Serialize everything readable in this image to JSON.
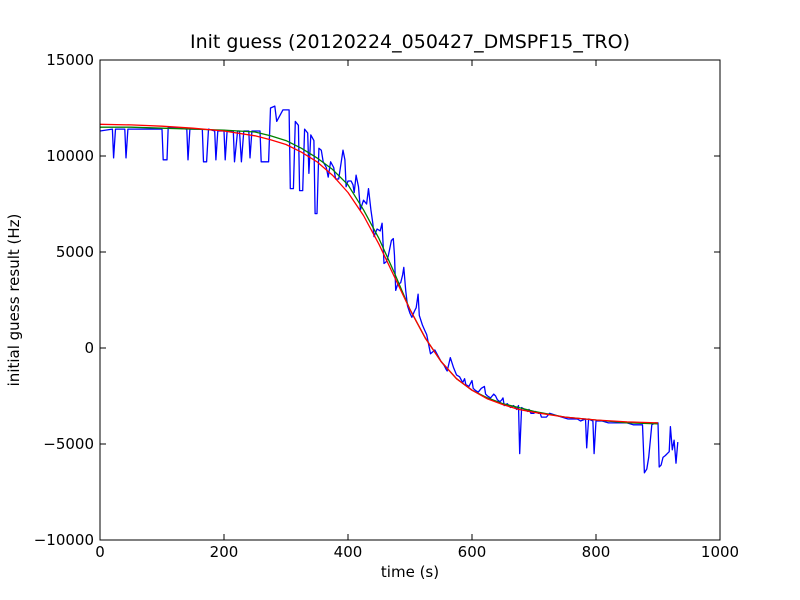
{
  "chart_data": {
    "type": "line",
    "title": "Init guess (20120224_050427_DMSPF15_TRO)",
    "xlabel": "time (s)",
    "ylabel": "initial guess result (Hz)",
    "xlim": [
      0,
      1000
    ],
    "ylim": [
      -10000,
      15000
    ],
    "x_ticks": [
      0,
      200,
      400,
      600,
      800,
      1000
    ],
    "y_ticks": [
      -10000,
      -5000,
      0,
      5000,
      10000,
      15000
    ],
    "x_tick_labels": [
      "0",
      "200",
      "400",
      "600",
      "800",
      "1000"
    ],
    "y_tick_labels": [
      "−10000",
      "−5000",
      "0",
      "5000",
      "10000",
      "15000"
    ],
    "grid": false,
    "series": [
      {
        "color": "#0000ff",
        "points": [
          [
            0,
            11300
          ],
          [
            20,
            11400
          ],
          [
            22,
            9900
          ],
          [
            25,
            11400
          ],
          [
            40,
            11400
          ],
          [
            42,
            9900
          ],
          [
            45,
            11400
          ],
          [
            100,
            11400
          ],
          [
            102,
            9800
          ],
          [
            108,
            9800
          ],
          [
            110,
            11500
          ],
          [
            140,
            11400
          ],
          [
            142,
            9800
          ],
          [
            145,
            11400
          ],
          [
            165,
            11400
          ],
          [
            167,
            9700
          ],
          [
            172,
            9700
          ],
          [
            175,
            11400
          ],
          [
            185,
            11300
          ],
          [
            187,
            9800
          ],
          [
            190,
            11300
          ],
          [
            200,
            11300
          ],
          [
            202,
            9800
          ],
          [
            205,
            11300
          ],
          [
            215,
            11300
          ],
          [
            217,
            9700
          ],
          [
            222,
            11300
          ],
          [
            225,
            11300
          ],
          [
            228,
            9700
          ],
          [
            232,
            11300
          ],
          [
            240,
            11300
          ],
          [
            242,
            9900
          ],
          [
            245,
            11300
          ],
          [
            258,
            11300
          ],
          [
            260,
            9700
          ],
          [
            272,
            9700
          ],
          [
            275,
            12500
          ],
          [
            282,
            12600
          ],
          [
            285,
            11800
          ],
          [
            295,
            12400
          ],
          [
            305,
            12400
          ],
          [
            307,
            8300
          ],
          [
            312,
            8300
          ],
          [
            315,
            11800
          ],
          [
            320,
            11600
          ],
          [
            322,
            8200
          ],
          [
            327,
            8200
          ],
          [
            330,
            11400
          ],
          [
            335,
            11200
          ],
          [
            337,
            9100
          ],
          [
            340,
            11100
          ],
          [
            345,
            10800
          ],
          [
            347,
            7000
          ],
          [
            350,
            7000
          ],
          [
            353,
            10400
          ],
          [
            357,
            10300
          ],
          [
            360,
            9700
          ],
          [
            365,
            9400
          ],
          [
            368,
            8900
          ],
          [
            372,
            9700
          ],
          [
            377,
            9400
          ],
          [
            380,
            8800
          ],
          [
            385,
            8800
          ],
          [
            392,
            10300
          ],
          [
            395,
            9800
          ],
          [
            397,
            8400
          ],
          [
            400,
            8700
          ],
          [
            405,
            8700
          ],
          [
            408,
            8500
          ],
          [
            410,
            8100
          ],
          [
            413,
            9000
          ],
          [
            417,
            8400
          ],
          [
            420,
            7200
          ],
          [
            425,
            7700
          ],
          [
            430,
            7500
          ],
          [
            433,
            8300
          ],
          [
            437,
            7200
          ],
          [
            440,
            6500
          ],
          [
            442,
            5800
          ],
          [
            447,
            6200
          ],
          [
            452,
            6100
          ],
          [
            455,
            6500
          ],
          [
            458,
            4400
          ],
          [
            462,
            4500
          ],
          [
            465,
            4800
          ],
          [
            470,
            5600
          ],
          [
            473,
            5700
          ],
          [
            475,
            4800
          ],
          [
            477,
            3000
          ],
          [
            480,
            3300
          ],
          [
            485,
            3400
          ],
          [
            488,
            3800
          ],
          [
            490,
            4200
          ],
          [
            493,
            3000
          ],
          [
            496,
            2200
          ],
          [
            500,
            1800
          ],
          [
            503,
            1600
          ],
          [
            507,
            1900
          ],
          [
            510,
            2100
          ],
          [
            513,
            2800
          ],
          [
            515,
            1700
          ],
          [
            520,
            1200
          ],
          [
            524,
            900
          ],
          [
            527,
            700
          ],
          [
            530,
            200
          ],
          [
            533,
            -300
          ],
          [
            537,
            -200
          ],
          [
            540,
            -100
          ],
          [
            545,
            -400
          ],
          [
            550,
            -700
          ],
          [
            555,
            -900
          ],
          [
            558,
            -1100
          ],
          [
            560,
            -1200
          ],
          [
            565,
            -500
          ],
          [
            570,
            -1000
          ],
          [
            575,
            -1400
          ],
          [
            580,
            -1500
          ],
          [
            585,
            -1800
          ],
          [
            588,
            -1600
          ],
          [
            590,
            -1900
          ],
          [
            595,
            -2000
          ],
          [
            600,
            -1700
          ],
          [
            602,
            -2100
          ],
          [
            605,
            -2200
          ],
          [
            610,
            -2300
          ],
          [
            615,
            -2100
          ],
          [
            620,
            -2000
          ],
          [
            622,
            -2400
          ],
          [
            625,
            -2500
          ],
          [
            630,
            -2600
          ],
          [
            635,
            -2400
          ],
          [
            638,
            -2500
          ],
          [
            641,
            -2700
          ],
          [
            645,
            -2800
          ],
          [
            648,
            -2700
          ],
          [
            650,
            -2600
          ],
          [
            652,
            -3000
          ],
          [
            657,
            -2900
          ],
          [
            662,
            -3100
          ],
          [
            667,
            -3000
          ],
          [
            670,
            -3100
          ],
          [
            672,
            -3200
          ],
          [
            675,
            -3000
          ],
          [
            677,
            -5500
          ],
          [
            680,
            -3100
          ],
          [
            685,
            -3200
          ],
          [
            690,
            -3300
          ],
          [
            692,
            -3200
          ],
          [
            695,
            -3400
          ],
          [
            700,
            -3400
          ],
          [
            702,
            -3300
          ],
          [
            707,
            -3400
          ],
          [
            710,
            -3400
          ],
          [
            712,
            -3600
          ],
          [
            720,
            -3600
          ],
          [
            725,
            -3400
          ],
          [
            735,
            -3500
          ],
          [
            745,
            -3600
          ],
          [
            755,
            -3700
          ],
          [
            765,
            -3700
          ],
          [
            770,
            -3700
          ],
          [
            775,
            -3800
          ],
          [
            783,
            -3700
          ],
          [
            785,
            -5200
          ],
          [
            788,
            -3700
          ],
          [
            795,
            -3800
          ],
          [
            797,
            -5500
          ],
          [
            800,
            -3800
          ],
          [
            810,
            -3800
          ],
          [
            820,
            -3900
          ],
          [
            835,
            -3900
          ],
          [
            850,
            -3900
          ],
          [
            860,
            -4000
          ],
          [
            875,
            -4000
          ],
          [
            878,
            -6500
          ],
          [
            882,
            -6300
          ],
          [
            885,
            -5700
          ],
          [
            890,
            -4000
          ],
          [
            895,
            -3900
          ],
          [
            898,
            -3900
          ],
          [
            900,
            -3900
          ],
          [
            902,
            -6200
          ],
          [
            905,
            -6100
          ],
          [
            908,
            -5700
          ],
          [
            912,
            -5600
          ],
          [
            915,
            -5500
          ],
          [
            918,
            -5400
          ],
          [
            920,
            -4100
          ],
          [
            923,
            -5300
          ],
          [
            926,
            -4800
          ],
          [
            929,
            -6000
          ],
          [
            932,
            -4900
          ]
        ]
      },
      {
        "color": "#008000",
        "points": [
          [
            0,
            11500
          ],
          [
            50,
            11500
          ],
          [
            100,
            11450
          ],
          [
            150,
            11400
          ],
          [
            200,
            11350
          ],
          [
            250,
            11250
          ],
          [
            275,
            11050
          ],
          [
            300,
            10800
          ],
          [
            325,
            10400
          ],
          [
            350,
            9900
          ],
          [
            375,
            9300
          ],
          [
            400,
            8500
          ],
          [
            425,
            7200
          ],
          [
            450,
            5700
          ],
          [
            475,
            3900
          ],
          [
            500,
            2000
          ],
          [
            525,
            500
          ],
          [
            550,
            -700
          ],
          [
            575,
            -1600
          ],
          [
            600,
            -2200
          ],
          [
            625,
            -2600
          ],
          [
            650,
            -2900
          ],
          [
            675,
            -3100
          ],
          [
            700,
            -3300
          ],
          [
            750,
            -3600
          ],
          [
            800,
            -3750
          ],
          [
            850,
            -3900
          ],
          [
            900,
            -3950
          ]
        ]
      },
      {
        "color": "#ff0000",
        "points": [
          [
            0,
            11650
          ],
          [
            50,
            11620
          ],
          [
            100,
            11550
          ],
          [
            150,
            11450
          ],
          [
            200,
            11300
          ],
          [
            250,
            11050
          ],
          [
            275,
            10850
          ],
          [
            300,
            10600
          ],
          [
            325,
            10200
          ],
          [
            350,
            9700
          ],
          [
            375,
            9000
          ],
          [
            400,
            8100
          ],
          [
            425,
            6900
          ],
          [
            450,
            5400
          ],
          [
            475,
            3700
          ],
          [
            500,
            2000
          ],
          [
            525,
            500
          ],
          [
            550,
            -700
          ],
          [
            575,
            -1600
          ],
          [
            600,
            -2200
          ],
          [
            625,
            -2650
          ],
          [
            650,
            -2950
          ],
          [
            675,
            -3200
          ],
          [
            700,
            -3350
          ],
          [
            750,
            -3600
          ],
          [
            800,
            -3750
          ],
          [
            850,
            -3850
          ],
          [
            900,
            -3900
          ]
        ]
      }
    ]
  }
}
